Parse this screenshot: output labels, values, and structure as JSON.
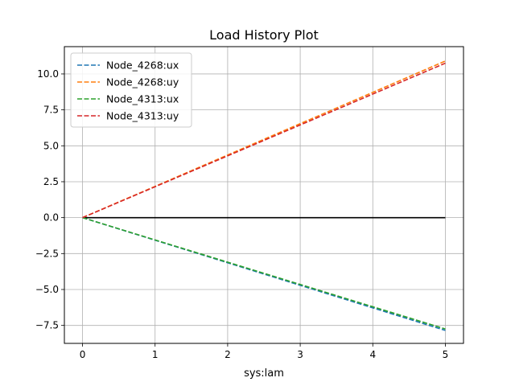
{
  "chart_data": {
    "type": "line",
    "title": "Load History Plot",
    "xlabel": "sys:lam",
    "ylabel": "",
    "xlim": [
      -0.25,
      5.25
    ],
    "ylim": [
      -8.75,
      11.9
    ],
    "xticks": [
      0,
      1,
      2,
      3,
      4,
      5
    ],
    "xtick_labels": [
      "0",
      "1",
      "2",
      "3",
      "4",
      "5"
    ],
    "yticks": [
      -7.5,
      -5.0,
      -2.5,
      0.0,
      2.5,
      5.0,
      7.5,
      10.0
    ],
    "ytick_labels": [
      "−7.5",
      "−5.0",
      "−2.5",
      "0.0",
      "2.5",
      "5.0",
      "7.5",
      "10.0"
    ],
    "grid": true,
    "legend_position": "upper-left",
    "reference_line": {
      "y": 0,
      "x_range": [
        0,
        5
      ],
      "color": "#000000"
    },
    "series": [
      {
        "name": "Node_4268:ux",
        "color": "#1f77b4",
        "dash": "dashed",
        "x": [
          0,
          5
        ],
        "y": [
          0,
          -7.85
        ]
      },
      {
        "name": "Node_4268:uy",
        "color": "#ff7f0e",
        "dash": "dashed",
        "x": [
          0,
          5
        ],
        "y": [
          0,
          10.9
        ]
      },
      {
        "name": "Node_4313:ux",
        "color": "#2ca02c",
        "dash": "dashed",
        "x": [
          0,
          5
        ],
        "y": [
          0,
          -7.75
        ]
      },
      {
        "name": "Node_4313:uy",
        "color": "#d62728",
        "dash": "dashed",
        "x": [
          0,
          5
        ],
        "y": [
          0,
          10.75
        ]
      }
    ]
  }
}
